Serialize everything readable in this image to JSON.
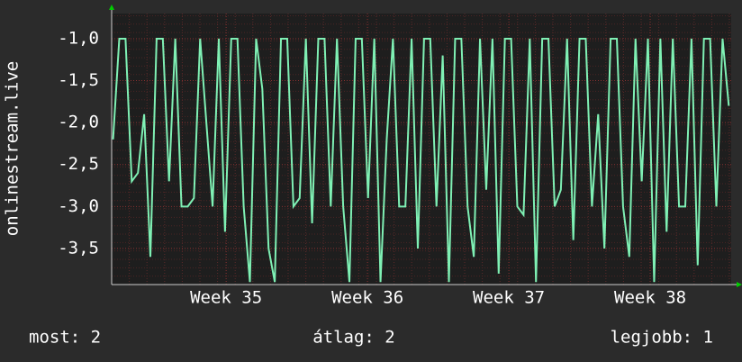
{
  "chart_data": {
    "type": "line",
    "ylabel": "onlinestream.live",
    "x": [
      34.2,
      34.244,
      34.288,
      34.332,
      34.376,
      34.42,
      34.464,
      34.508,
      34.552,
      34.596,
      34.64,
      34.684,
      34.728,
      34.772,
      34.816,
      34.86,
      34.904,
      34.948,
      34.992,
      35.036,
      35.08,
      35.124,
      35.168,
      35.212,
      35.256,
      35.3,
      35.344,
      35.388,
      35.432,
      35.476,
      35.52,
      35.564,
      35.608,
      35.652,
      35.696,
      35.74,
      35.784,
      35.828,
      35.872,
      35.916,
      35.96,
      36.004,
      36.048,
      36.092,
      36.136,
      36.18,
      36.224,
      36.268,
      36.312,
      36.356,
      36.4,
      36.444,
      36.488,
      36.532,
      36.576,
      36.62,
      36.664,
      36.708,
      36.752,
      36.796,
      36.84,
      36.884,
      36.928,
      36.972,
      37.016,
      37.06,
      37.104,
      37.148,
      37.192,
      37.236,
      37.28,
      37.324,
      37.368,
      37.412,
      37.456,
      37.5,
      37.544,
      37.588,
      37.632,
      37.676,
      37.72,
      37.764,
      37.808,
      37.852,
      37.896,
      37.94,
      37.984,
      38.028,
      38.072,
      38.116,
      38.16,
      38.204,
      38.248,
      38.292,
      38.336,
      38.38,
      38.424,
      38.468,
      38.512,
      38.556
    ],
    "series": [
      {
        "name": "onlinestream.live",
        "color": "#7ff0b4",
        "values": [
          -2.2,
          -1,
          -1,
          -2.7,
          -2.6,
          -1.9,
          -3.6,
          -1,
          -1,
          -2.7,
          -1,
          -3,
          -3,
          -2.9,
          -1,
          -2,
          -3,
          -1,
          -3.3,
          -1,
          -1,
          -3,
          -3.9,
          -1,
          -1.6,
          -3.5,
          -3.9,
          -1,
          -1,
          -3,
          -2.9,
          -1,
          -3.2,
          -1,
          -1,
          -3,
          -1,
          -3,
          -3.9,
          -1,
          -1,
          -2.9,
          -1,
          -3.9,
          -2.2,
          -1,
          -3,
          -3,
          -1,
          -3.5,
          -1,
          -1,
          -3,
          -1.2,
          -3.9,
          -1,
          -1,
          -3,
          -3.6,
          -1,
          -2.8,
          -1,
          -3.8,
          -1,
          -1,
          -3,
          -3.1,
          -1,
          -3.9,
          -1,
          -1,
          -3,
          -2.8,
          -1,
          -3.4,
          -1,
          -1,
          -3,
          -1.9,
          -3.5,
          -1,
          -1,
          -3,
          -3.6,
          -1,
          -2.7,
          -1,
          -3.9,
          -1,
          -3.3,
          -1,
          -3,
          -3,
          -1,
          -3.7,
          -1,
          -1,
          -3,
          -1,
          -1.8
        ]
      }
    ],
    "xlim": [
      34.19,
      38.573
    ],
    "xticks": [
      {
        "value": 35,
        "label": "Week 35"
      },
      {
        "value": 36,
        "label": "Week 36"
      },
      {
        "value": 37,
        "label": "Week 37"
      },
      {
        "value": 38,
        "label": "Week 38"
      }
    ],
    "ylim": [
      -3.93,
      -0.7
    ],
    "yticks": [
      {
        "value": -1,
        "label": "-1,0"
      },
      {
        "value": -1.5,
        "label": "-1,5"
      },
      {
        "value": -2,
        "label": "-2,0"
      },
      {
        "value": -2.5,
        "label": "-2,5"
      },
      {
        "value": -3,
        "label": "-3,0"
      },
      {
        "value": -3.5,
        "label": "-3,5"
      }
    ],
    "grid": true,
    "annotations": [
      "most: 2",
      "átlag: 2",
      "legjobb: 1"
    ]
  }
}
